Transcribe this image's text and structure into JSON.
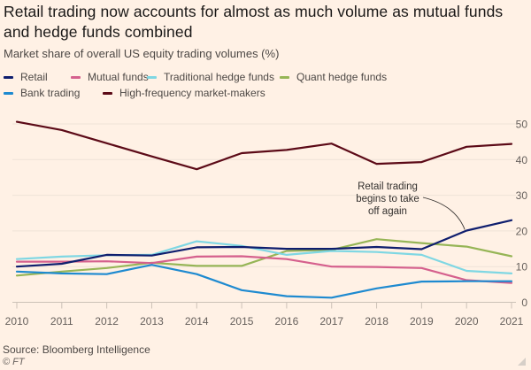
{
  "chart_data": {
    "type": "line",
    "title": "Retail trading now accounts for almost as much volume as mutual funds and hedge funds combined",
    "subtitle": "Market share of overall US equity trading volumes (%)",
    "xlabel": "",
    "ylabel": "",
    "x": [
      "2010",
      "2011",
      "2012",
      "2013",
      "2014",
      "2015",
      "2016",
      "2017",
      "2018",
      "2019",
      "2020",
      "2021"
    ],
    "ylim": [
      0,
      50
    ],
    "yticks": [
      0,
      10,
      20,
      30,
      40,
      50
    ],
    "grid": true,
    "y_axis_side": "right",
    "legend_placement": "top-left",
    "series": [
      {
        "name": "Retail",
        "color": "#0f1e6e",
        "values": [
          10.0,
          10.8,
          13.3,
          13.1,
          15.4,
          15.5,
          15.0,
          15.0,
          15.5,
          14.9,
          20.1,
          23.0
        ]
      },
      {
        "name": "Mutual funds",
        "color": "#d5608d",
        "values": [
          11.4,
          11.4,
          11.5,
          11.0,
          12.8,
          12.9,
          12.1,
          10.0,
          9.9,
          9.6,
          6.2,
          5.4
        ]
      },
      {
        "name": "Traditional hedge funds",
        "color": "#7fd7e3",
        "values": [
          12.1,
          12.8,
          13.2,
          13.3,
          17.1,
          15.8,
          13.3,
          14.4,
          14.1,
          13.3,
          8.8,
          8.1
        ]
      },
      {
        "name": "Quant hedge funds",
        "color": "#96b556",
        "values": [
          7.5,
          8.6,
          9.6,
          11.1,
          10.2,
          10.2,
          14.4,
          14.7,
          17.7,
          16.6,
          15.6,
          12.9
        ]
      },
      {
        "name": "Bank trading",
        "color": "#1e8ad0",
        "values": [
          8.6,
          8.1,
          7.9,
          10.5,
          7.9,
          3.4,
          1.7,
          1.3,
          3.9,
          5.8,
          5.9,
          5.9
        ]
      },
      {
        "name": "High-frequency market-makers",
        "color": "#5c0a17",
        "values": [
          50.6,
          48.3,
          44.6,
          40.9,
          37.3,
          41.8,
          42.7,
          44.5,
          38.8,
          39.3,
          43.6,
          44.4
        ]
      }
    ],
    "annotations": [
      {
        "text_lines": [
          "Retail trading",
          "begins to take",
          "off again"
        ],
        "points_to": {
          "series": "Retail",
          "x": "2020"
        }
      }
    ],
    "source": "Source: Bloomberg Intelligence",
    "copyright": "© FT"
  }
}
